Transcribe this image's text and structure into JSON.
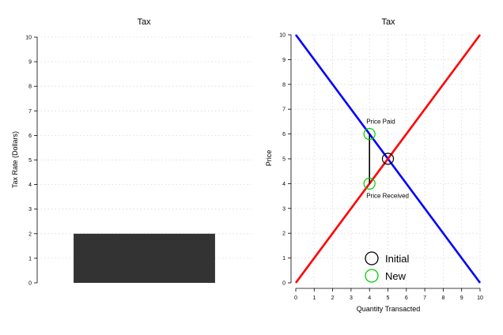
{
  "colors": {
    "bar": "#333333",
    "demand": "#0000ff",
    "supply": "#ff0000",
    "initial_marker": "#000000",
    "new_marker": "#00cc00",
    "wedge": "#000000"
  },
  "chart_data": [
    {
      "type": "bar",
      "title": "Tax",
      "xlabel": "",
      "ylabel": "Tax Rate (Dollars)",
      "ylim": [
        0,
        10
      ],
      "yticks": [
        "0",
        "1",
        "2",
        "3",
        "4",
        "5",
        "6",
        "7",
        "8",
        "9",
        "10"
      ],
      "categories": [
        ""
      ],
      "values": [
        2
      ],
      "grid": true
    },
    {
      "type": "line",
      "title": "Tax",
      "xlabel": "Quantity Transacted",
      "ylabel": "Price",
      "xlim": [
        0,
        10
      ],
      "ylim": [
        0,
        10
      ],
      "xticks": [
        "0",
        "1",
        "2",
        "3",
        "4",
        "5",
        "6",
        "7",
        "8",
        "9",
        "10"
      ],
      "yticks": [
        "0",
        "1",
        "2",
        "3",
        "4",
        "5",
        "6",
        "7",
        "8",
        "9",
        "10"
      ],
      "grid": true,
      "series": [
        {
          "key": "demand",
          "x": [
            0,
            10
          ],
          "y": [
            10,
            0
          ]
        },
        {
          "key": "supply",
          "x": [
            0,
            10
          ],
          "y": [
            0,
            10
          ]
        }
      ],
      "wedge": {
        "x": 4,
        "y_low": 4,
        "y_high": 6
      },
      "points": [
        {
          "key": "initial",
          "x": 5,
          "y": 5
        },
        {
          "key": "new_paid",
          "x": 4,
          "y": 6
        },
        {
          "key": "new_received",
          "x": 4,
          "y": 4
        }
      ],
      "annotations": [
        {
          "text": "Price Paid",
          "x": 4,
          "y": 6,
          "anchor": "above"
        },
        {
          "text": "Price Received",
          "x": 4,
          "y": 4,
          "anchor": "below"
        }
      ],
      "legend": {
        "position": "bottom-center",
        "entries": [
          {
            "label": "Initial",
            "color": "#000000"
          },
          {
            "label": "New",
            "color": "#00cc00"
          }
        ]
      }
    }
  ]
}
